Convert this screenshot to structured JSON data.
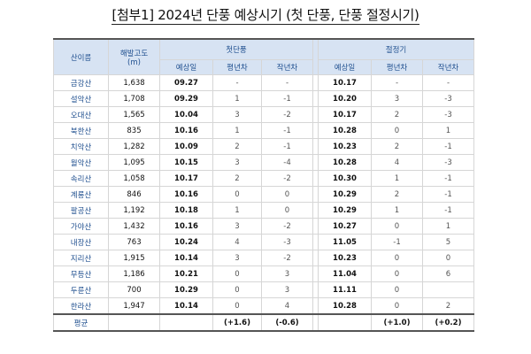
{
  "title": "[첨부1] 2024년 단풍 예상시기 (첫 단풍, 단풍 절정시기)",
  "headers": {
    "mountain": "산이름",
    "altitude": "해발고도",
    "altitude_unit": "(m)",
    "first": "첫단풍",
    "peak": "절정기",
    "expected_date": "예상일",
    "vs_normal": "평년차",
    "vs_last_year": "작년차"
  },
  "rows": [
    {
      "name": "금강산",
      "alt": "1,638",
      "f_date": "09.27",
      "f_norm": "-",
      "f_last": "-",
      "p_date": "10.17",
      "p_norm": "-",
      "p_last": "-"
    },
    {
      "name": "설악산",
      "alt": "1,708",
      "f_date": "09.29",
      "f_norm": "1",
      "f_last": "-1",
      "p_date": "10.20",
      "p_norm": "3",
      "p_last": "-3"
    },
    {
      "name": "오대산",
      "alt": "1,565",
      "f_date": "10.04",
      "f_norm": "3",
      "f_last": "-2",
      "p_date": "10.17",
      "p_norm": "2",
      "p_last": "-3"
    },
    {
      "name": "북한산",
      "alt": "835",
      "f_date": "10.16",
      "f_norm": "1",
      "f_last": "-1",
      "p_date": "10.28",
      "p_norm": "0",
      "p_last": "1"
    },
    {
      "name": "치악산",
      "alt": "1,282",
      "f_date": "10.09",
      "f_norm": "2",
      "f_last": "-1",
      "p_date": "10.23",
      "p_norm": "2",
      "p_last": "-1"
    },
    {
      "name": "월악산",
      "alt": "1,095",
      "f_date": "10.15",
      "f_norm": "3",
      "f_last": "-4",
      "p_date": "10.28",
      "p_norm": "4",
      "p_last": "-3"
    },
    {
      "name": "속리산",
      "alt": "1,058",
      "f_date": "10.17",
      "f_norm": "2",
      "f_last": "-2",
      "p_date": "10.30",
      "p_norm": "1",
      "p_last": "-1"
    },
    {
      "name": "계룡산",
      "alt": "846",
      "f_date": "10.16",
      "f_norm": "0",
      "f_last": "0",
      "p_date": "10.29",
      "p_norm": "2",
      "p_last": "-1"
    },
    {
      "name": "팔공산",
      "alt": "1,192",
      "f_date": "10.18",
      "f_norm": "1",
      "f_last": "0",
      "p_date": "10.29",
      "p_norm": "1",
      "p_last": "-1"
    },
    {
      "name": "가야산",
      "alt": "1,432",
      "f_date": "10.16",
      "f_norm": "3",
      "f_last": "-2",
      "p_date": "10.27",
      "p_norm": "0",
      "p_last": "1"
    },
    {
      "name": "내장산",
      "alt": "763",
      "f_date": "10.24",
      "f_norm": "4",
      "f_last": "-3",
      "p_date": "11.05",
      "p_norm": "-1",
      "p_last": "5"
    },
    {
      "name": "지리산",
      "alt": "1,915",
      "f_date": "10.14",
      "f_norm": "3",
      "f_last": "-2",
      "p_date": "10.23",
      "p_norm": "0",
      "p_last": "0"
    },
    {
      "name": "무등산",
      "alt": "1,186",
      "f_date": "10.21",
      "f_norm": "0",
      "f_last": "3",
      "p_date": "11.04",
      "p_norm": "0",
      "p_last": "6"
    },
    {
      "name": "두륜산",
      "alt": "700",
      "f_date": "10.29",
      "f_norm": "0",
      "f_last": "3",
      "p_date": "11.11",
      "p_norm": "0",
      "p_last": ""
    },
    {
      "name": "한라산",
      "alt": "1,947",
      "f_date": "10.14",
      "f_norm": "0",
      "f_last": "4",
      "p_date": "10.28",
      "p_norm": "0",
      "p_last": "2"
    }
  ],
  "average": {
    "label": "평균",
    "f_norm": "(+1.6)",
    "f_last": "(-0.6)",
    "p_norm": "(+1.0)",
    "p_last": "(+0.2)"
  }
}
